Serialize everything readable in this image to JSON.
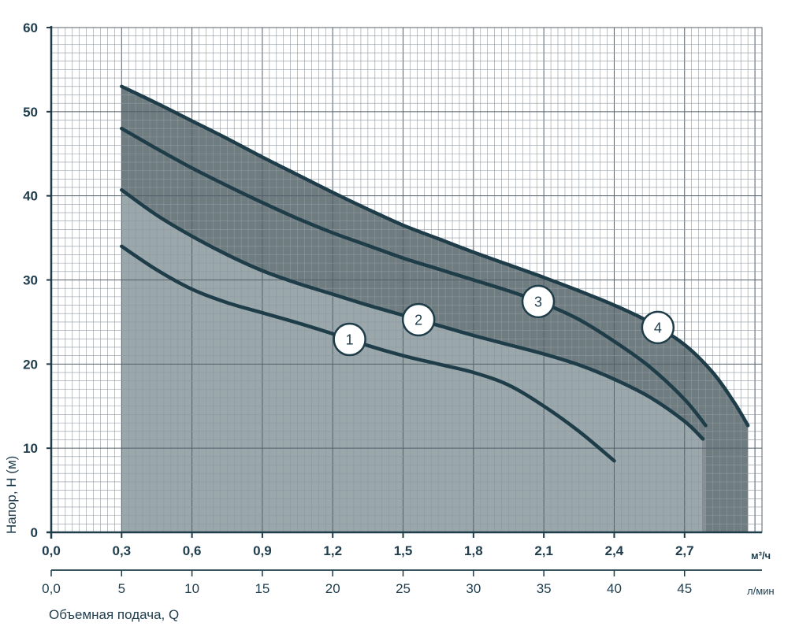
{
  "chart_data": {
    "type": "line",
    "title": "",
    "ylabel": "Напор, Н (м)",
    "xlabel": "Объемная подача, Q",
    "x_unit_primary": "м³/ч",
    "x_unit_secondary": "л/мин",
    "y_ticks": [
      "0",
      "10",
      "20",
      "30",
      "40",
      "50",
      "60"
    ],
    "x_ticks_m3h": [
      "0,0",
      "0,3",
      "0,6",
      "0,9",
      "1,2",
      "1,5",
      "1,8",
      "2,1",
      "2,4",
      "2,7"
    ],
    "x_ticks_lmin": [
      "0,0",
      "5",
      "10",
      "15",
      "20",
      "25",
      "30",
      "35",
      "40",
      "45"
    ],
    "xlim_lmin": [
      0,
      50.5
    ],
    "ylim": [
      0,
      60
    ],
    "grid": true,
    "series": [
      {
        "name": "1",
        "x": [
          5,
          7.5,
          10,
          12.5,
          15,
          17.5,
          20,
          22.5,
          25,
          27.5,
          30,
          32.5,
          35,
          37.5,
          40
        ],
        "y": [
          34,
          31.2,
          28.9,
          27.3,
          26.1,
          24.9,
          23.6,
          22.2,
          21.0,
          20.0,
          19.0,
          17.5,
          15.0,
          12.0,
          8.5
        ]
      },
      {
        "name": "2",
        "x": [
          5,
          7.5,
          10,
          12.5,
          15,
          17.5,
          20,
          22.5,
          25,
          27.5,
          30,
          32.5,
          35,
          37.5,
          40,
          42.5,
          45,
          46.3
        ],
        "y": [
          40.7,
          37.7,
          35.2,
          33.0,
          31.1,
          29.6,
          28.3,
          27.0,
          25.8,
          24.6,
          23.4,
          22.3,
          21.2,
          19.9,
          18.2,
          16.1,
          13.2,
          11.1
        ]
      },
      {
        "name": "3",
        "x": [
          5,
          7.5,
          10,
          12.5,
          15,
          17.5,
          20,
          22.5,
          25,
          27.5,
          30,
          32.5,
          35,
          37.5,
          40,
          42.5,
          45,
          46.5
        ],
        "y": [
          48.0,
          45.6,
          43.3,
          41.2,
          39.2,
          37.3,
          35.6,
          34.1,
          32.6,
          31.3,
          30.0,
          28.7,
          27.2,
          25.3,
          22.7,
          19.7,
          15.8,
          12.7
        ]
      },
      {
        "name": "4",
        "x": [
          5,
          7.5,
          10,
          12.5,
          15,
          17.5,
          20,
          22.5,
          25,
          27.5,
          30,
          32.5,
          35,
          37.5,
          40,
          42.5,
          45,
          47,
          48.5,
          49.5
        ],
        "y": [
          53.0,
          51.0,
          48.9,
          46.8,
          44.6,
          42.5,
          40.4,
          38.4,
          36.5,
          34.9,
          33.3,
          31.8,
          30.3,
          28.7,
          27.0,
          25.0,
          22.3,
          19.0,
          15.5,
          12.7
        ]
      }
    ],
    "colors": {
      "fill_outer": "#6f7c80",
      "fill_inner": "#9aa7ab",
      "curve": "#1e3d49",
      "grid": "#8f98a0",
      "grid_major": "#55606a",
      "axis": "#1e3d49"
    }
  }
}
